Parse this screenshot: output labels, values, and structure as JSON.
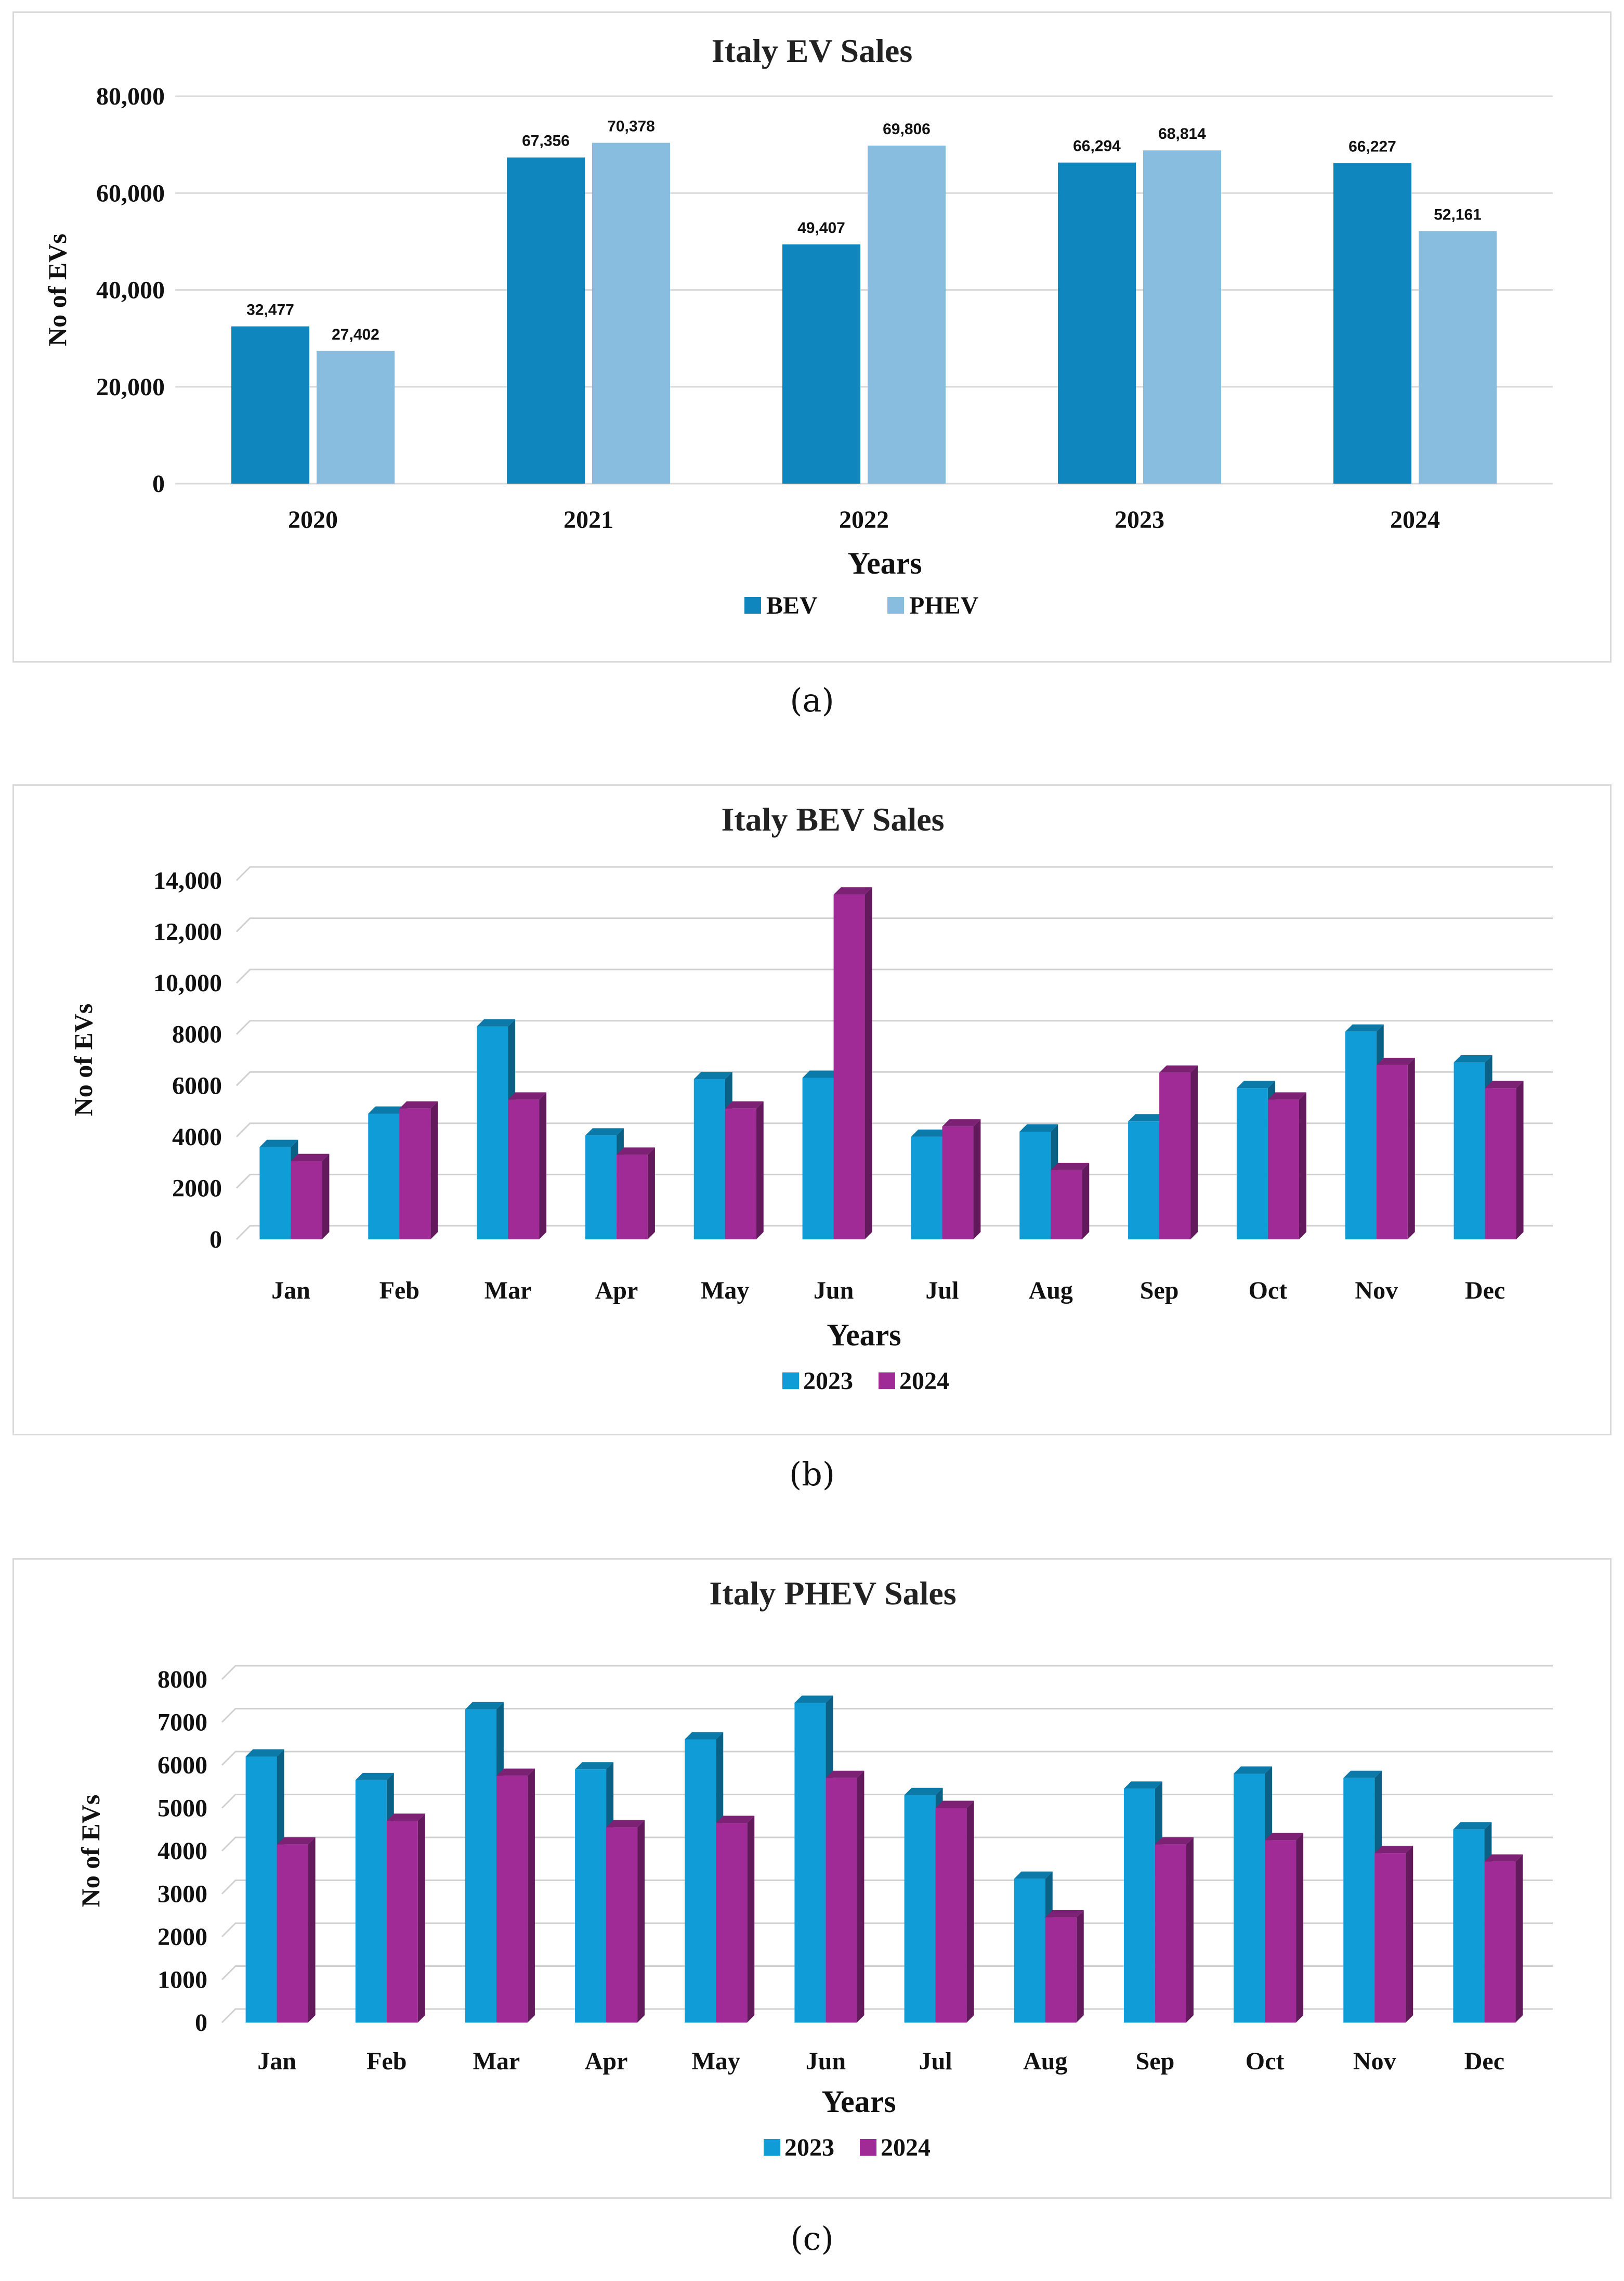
{
  "chart_data": [
    {
      "type": "bar",
      "title": "Italy EV Sales",
      "xlabel": "Years",
      "ylabel": "No of  EVs",
      "categories": [
        "2020",
        "2021",
        "2022",
        "2023",
        "2024"
      ],
      "yticks": [
        "0",
        "20,000",
        "40,000",
        "60,000",
        "80,000"
      ],
      "ylim": [
        0,
        80000
      ],
      "series": [
        {
          "name": "BEV",
          "color": "#0f86bd",
          "values": [
            32477,
            67356,
            49407,
            66294,
            66227
          ],
          "labels": [
            "32,477",
            "67,356",
            "49,407",
            "66,294",
            "66,227"
          ]
        },
        {
          "name": "PHEV",
          "color": "#88bde0",
          "values": [
            27402,
            70378,
            69806,
            68814,
            52161
          ],
          "labels": [
            "27,402",
            "70,378",
            "69,806",
            "68,814",
            "52,161"
          ]
        }
      ],
      "legend": "bottom",
      "caption": "(a)"
    },
    {
      "type": "bar",
      "title": "Italy BEV Sales",
      "xlabel": "Years",
      "ylabel": "No of  EVs",
      "categories": [
        "Jan",
        "Feb",
        "Mar",
        "Apr",
        "May",
        "Jun",
        "Jul",
        "Aug",
        "Sep",
        "Oct",
        "Nov",
        "Dec"
      ],
      "yticks": [
        "0",
        "2000",
        "4000",
        "6000",
        "8000",
        "10,000",
        "12,000",
        "14,000"
      ],
      "ylim": [
        0,
        14000
      ],
      "series": [
        {
          "name": "2023",
          "color": "#109cd7",
          "values": [
            3600,
            4900,
            8300,
            4050,
            6250,
            6300,
            4000,
            4200,
            4600,
            5900,
            8100,
            6900
          ]
        },
        {
          "name": "2024",
          "color": "#a02a96",
          "values": [
            3050,
            5100,
            5450,
            3300,
            5100,
            13450,
            4400,
            2700,
            6500,
            5450,
            6800,
            5900
          ]
        }
      ],
      "legend": "bottom",
      "caption": "(b)"
    },
    {
      "type": "bar",
      "title": "Italy PHEV Sales",
      "xlabel": "Years",
      "ylabel": "No of  EVs",
      "categories": [
        "Jan",
        "Feb",
        "Mar",
        "Apr",
        "May",
        "Jun",
        "Jul",
        "Aug",
        "Sep",
        "Oct",
        "Nov",
        "Dec"
      ],
      "yticks": [
        "0",
        "1000",
        "2000",
        "3000",
        "4000",
        "5000",
        "6000",
        "7000",
        "8000"
      ],
      "ylim": [
        0,
        8000
      ],
      "series": [
        {
          "name": "2023",
          "color": "#109cd7",
          "values": [
            6200,
            5650,
            7300,
            5900,
            6600,
            7450,
            5300,
            3350,
            5450,
            5800,
            5700,
            4500
          ]
        },
        {
          "name": "2024",
          "color": "#a02a96",
          "values": [
            4150,
            4700,
            5750,
            4550,
            4650,
            5700,
            5000,
            2450,
            4150,
            4250,
            3950,
            3750
          ]
        }
      ],
      "legend": "bottom",
      "caption": "(c)"
    }
  ]
}
